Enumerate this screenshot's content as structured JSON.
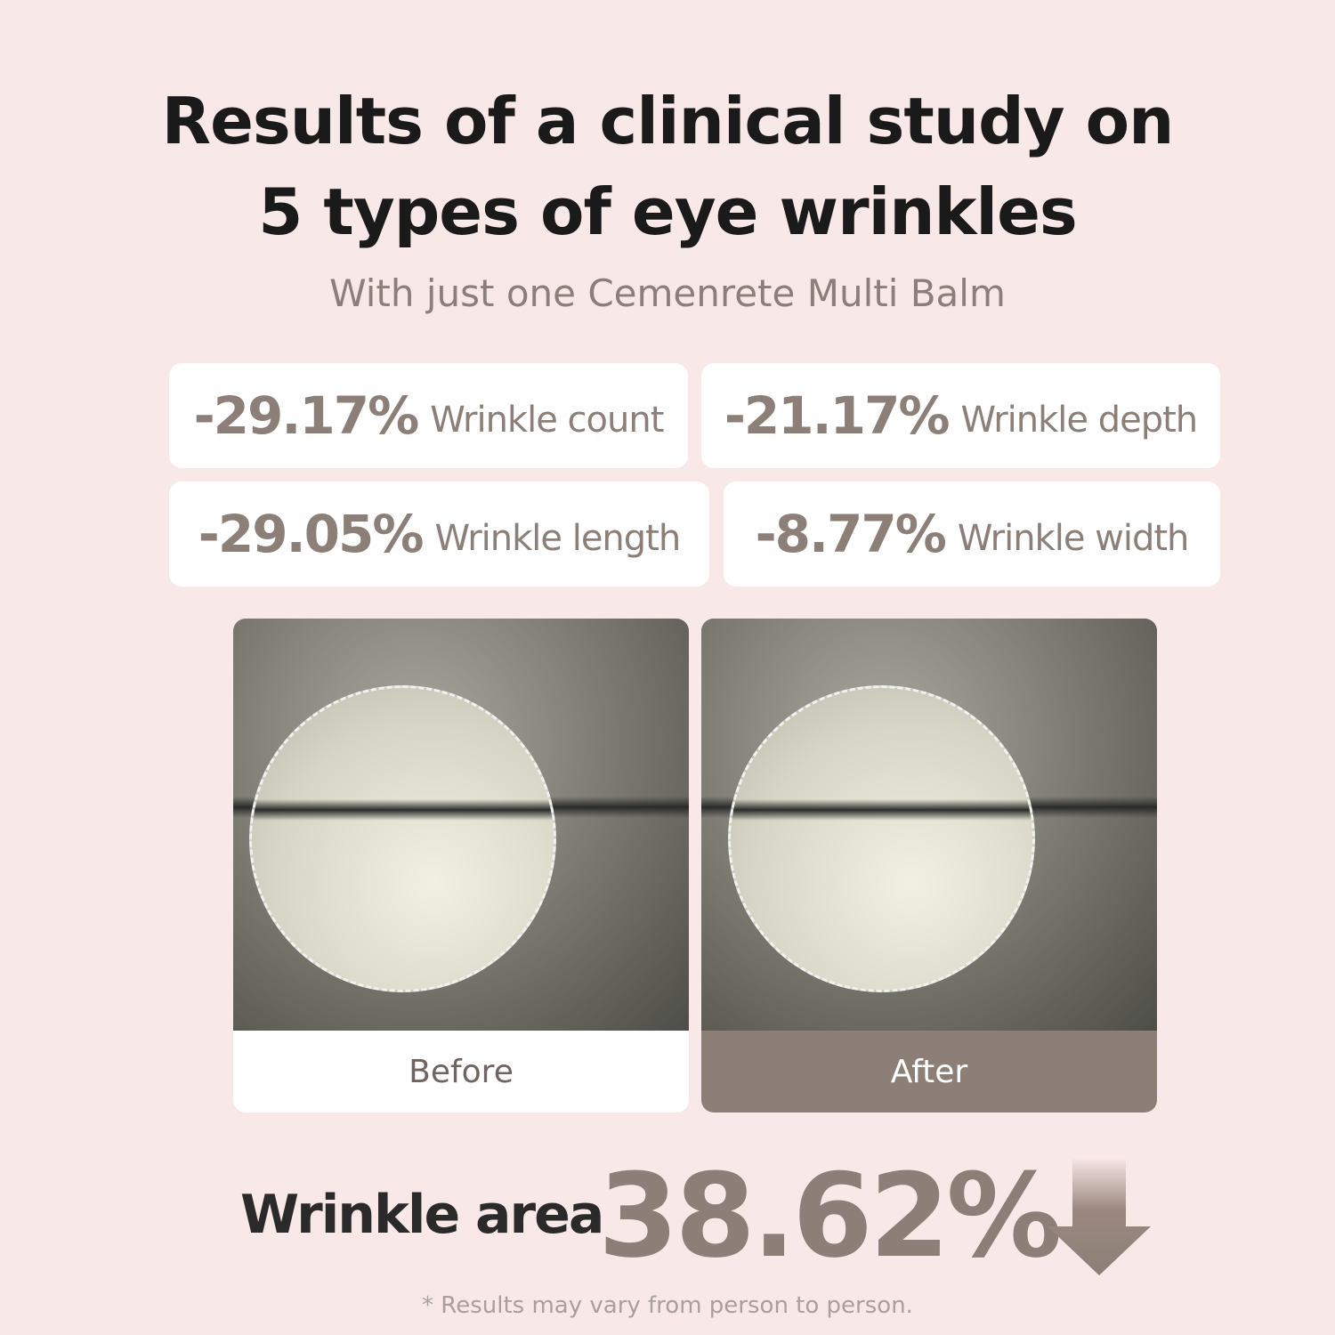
{
  "header": {
    "title_line1": "Results of a clinical study on",
    "title_line2": "5 types of eye wrinkles",
    "subtitle": "With just one Cemenrete Multi Balm"
  },
  "stats": [
    {
      "value": "-29.17%",
      "label": "Wrinkle count"
    },
    {
      "value": "-21.17%",
      "label": "Wrinkle depth"
    },
    {
      "value": "-29.05%",
      "label": "Wrinkle length"
    },
    {
      "value": "-8.77%",
      "label": "Wrinkle width"
    }
  ],
  "comparison": {
    "before_label": "Before",
    "after_label": "After"
  },
  "summary": {
    "label": "Wrinkle area",
    "value": "38.62%",
    "arrow_icon": "arrow-down-icon"
  },
  "footnote": "* Results may vary from person to person.",
  "colors": {
    "background": "#f9e8e8",
    "accent": "#8c7f78",
    "title": "#1a1a1a"
  }
}
